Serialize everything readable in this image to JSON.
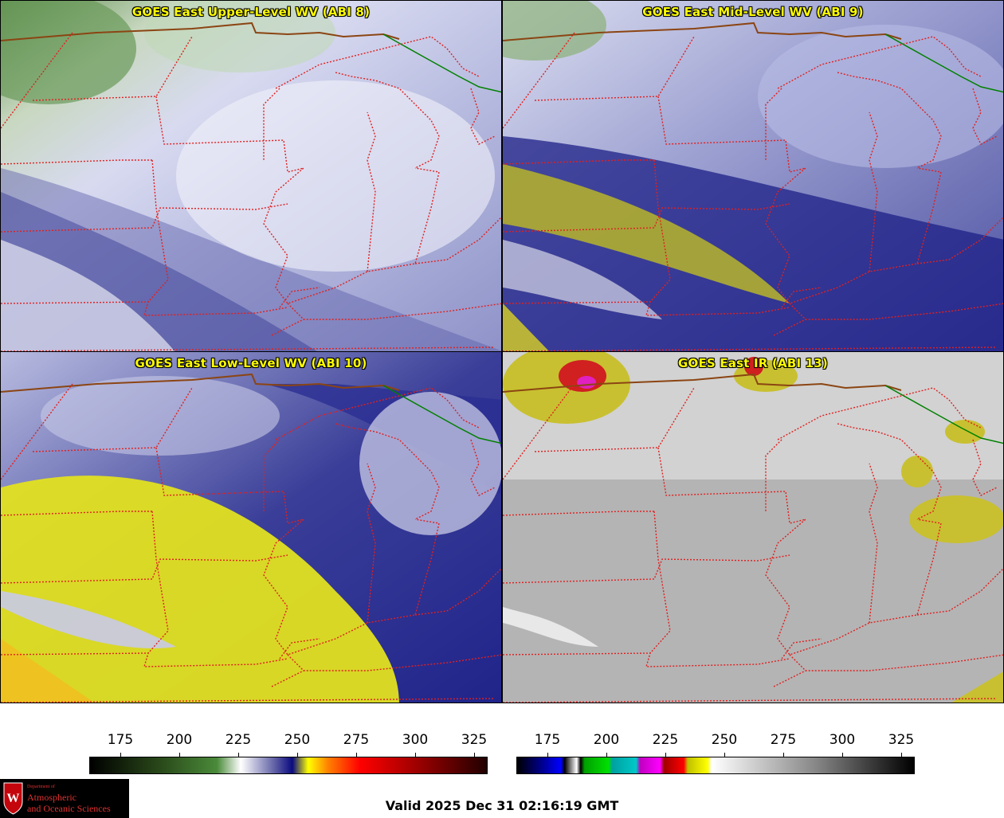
{
  "panels": {
    "top_left": {
      "title": "GOES East Upper-Level WV (ABI 8)"
    },
    "top_right": {
      "title": "GOES East Mid-Level WV (ABI 9)"
    },
    "bottom_left": {
      "title": "GOES East Low-Level WV (ABI 10)"
    },
    "bottom_right": {
      "title": "GOES East IR (ABI 13)"
    }
  },
  "colorbars": {
    "wv": {
      "ticks": [
        "175",
        "200",
        "225",
        "250",
        "275",
        "300",
        "325"
      ]
    },
    "ir": {
      "ticks": [
        "175",
        "200",
        "225",
        "250",
        "275",
        "300",
        "325"
      ]
    }
  },
  "valid": "Valid 2025 Dec 31 02:16:19 GMT",
  "logo": {
    "dept": "Department of",
    "line1": "Atmospheric",
    "line2": "and Oceanic Sciences",
    "crest_letter": "W"
  },
  "colors": {
    "state_border": "#e02020",
    "country_border": "#8b4513",
    "water_border": "#008000",
    "title_text": "#ffff00"
  }
}
